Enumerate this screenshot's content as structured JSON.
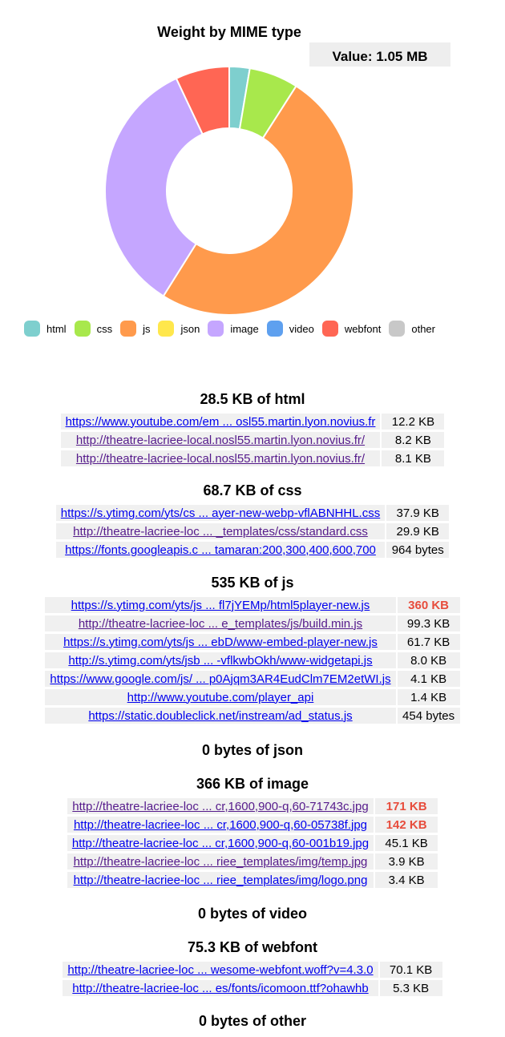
{
  "chart_data": {
    "type": "pie",
    "title": "Weight by MIME type",
    "value_label": "Value: 1.05 MB",
    "categories": [
      "html",
      "css",
      "js",
      "json",
      "image",
      "video",
      "webfont",
      "other"
    ],
    "values_kb": [
      28.5,
      68.7,
      535,
      0,
      366,
      0,
      75.3,
      0
    ],
    "colors": [
      "#7ecfce",
      "#a8e84c",
      "#ff9a4c",
      "#ffe74c",
      "#c5a6ff",
      "#5ea0ef",
      "#ff6654",
      "#c8c8c8"
    ],
    "legend_position": "bottom"
  },
  "sections": [
    {
      "title": "28.5 KB of html",
      "rows": [
        {
          "url": "https://www.youtube.com/em ... osl55.martin.lyon.novius.fr",
          "size": "12.2 KB",
          "big": false,
          "visited": false
        },
        {
          "url": "http://theatre-lacriee-local.nosl55.martin.lyon.novius.fr/",
          "size": "8.2 KB",
          "big": false,
          "visited": true
        },
        {
          "url": "http://theatre-lacriee-local.nosl55.martin.lyon.novius.fr/",
          "size": "8.1 KB",
          "big": false,
          "visited": true
        }
      ]
    },
    {
      "title": "68.7 KB of css",
      "rows": [
        {
          "url": "https://s.ytimg.com/yts/cs ... ayer-new-webp-vflABNHHL.css",
          "size": "37.9 KB",
          "big": false,
          "visited": false
        },
        {
          "url": "http://theatre-lacriee-loc ... _templates/css/standard.css",
          "size": "29.9 KB",
          "big": false,
          "visited": true
        },
        {
          "url": "https://fonts.googleapis.c ... tamaran:200,300,400,600,700",
          "size": "964 bytes",
          "big": false,
          "visited": false
        }
      ]
    },
    {
      "title": "535 KB of js",
      "rows": [
        {
          "url": "https://s.ytimg.com/yts/js ... fl7jYEMp/html5player-new.js",
          "size": "360 KB",
          "big": true,
          "visited": false
        },
        {
          "url": "http://theatre-lacriee-loc ... e_templates/js/build.min.js",
          "size": "99.3 KB",
          "big": false,
          "visited": true
        },
        {
          "url": "https://s.ytimg.com/yts/js ... ebD/www-embed-player-new.js",
          "size": "61.7 KB",
          "big": false,
          "visited": false
        },
        {
          "url": "http://s.ytimg.com/yts/jsb ... -vflkwbOkh/www-widgetapi.js",
          "size": "8.0 KB",
          "big": false,
          "visited": false
        },
        {
          "url": "https://www.google.com/js/ ... p0Ajqm3AR4EudClm7EM2etWI.js",
          "size": "4.1 KB",
          "big": false,
          "visited": false
        },
        {
          "url": "http://www.youtube.com/player_api",
          "size": "1.4 KB",
          "big": false,
          "visited": false
        },
        {
          "url": "https://static.doubleclick.net/instream/ad_status.js",
          "size": "454 bytes",
          "big": false,
          "visited": false
        }
      ]
    },
    {
      "title": "0 bytes of json",
      "rows": []
    },
    {
      "title": "366 KB of image",
      "rows": [
        {
          "url": "http://theatre-lacriee-loc ... cr,1600,900-q,60-71743c.jpg",
          "size": "171 KB",
          "big": true,
          "visited": true
        },
        {
          "url": "http://theatre-lacriee-loc ... cr,1600,900-q,60-05738f.jpg",
          "size": "142 KB",
          "big": true,
          "visited": false
        },
        {
          "url": "http://theatre-lacriee-loc ... cr,1600,900-q,60-001b19.jpg",
          "size": "45.1 KB",
          "big": false,
          "visited": false
        },
        {
          "url": "http://theatre-lacriee-loc ... riee_templates/img/temp.jpg",
          "size": "3.9 KB",
          "big": false,
          "visited": true
        },
        {
          "url": "http://theatre-lacriee-loc ... riee_templates/img/logo.png",
          "size": "3.4 KB",
          "big": false,
          "visited": false
        }
      ]
    },
    {
      "title": "0 bytes of video",
      "rows": []
    },
    {
      "title": "75.3 KB of webfont",
      "rows": [
        {
          "url": "http://theatre-lacriee-loc ... wesome-webfont.woff?v=4.3.0",
          "size": "70.1 KB",
          "big": false,
          "visited": false
        },
        {
          "url": "http://theatre-lacriee-loc ... es/fonts/icomoon.ttf?ohawhb",
          "size": "5.3 KB",
          "big": false,
          "visited": false
        }
      ]
    },
    {
      "title": "0 bytes of other",
      "rows": []
    }
  ]
}
